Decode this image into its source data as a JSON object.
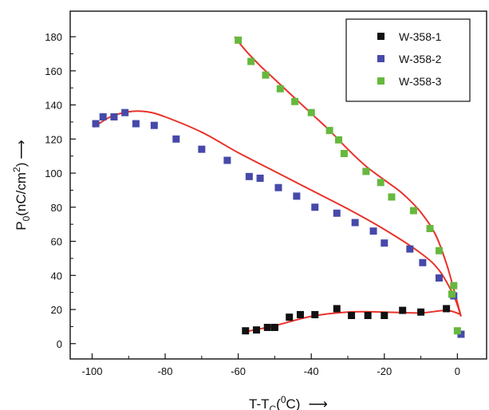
{
  "chart_data": {
    "type": "scatter",
    "xlabel_main": "T-T",
    "xlabel_sub": "C",
    "xlabel_paren_open": "(",
    "xlabel_sup": "0",
    "xlabel_tail": "C)",
    "xlabel_arrow": "⟶",
    "ylabel_main": "P",
    "ylabel_sub": "0",
    "ylabel_mid": "(nC/cm",
    "ylabel_sup": "2",
    "ylabel_tail": ")",
    "ylabel_arrow": "⟶",
    "xlim": [
      -106,
      8
    ],
    "ylim": [
      -9,
      195
    ],
    "x_ticks": [
      -100,
      -80,
      -60,
      -40,
      -20,
      0
    ],
    "y_ticks": [
      0,
      20,
      40,
      60,
      80,
      100,
      120,
      140,
      160,
      180
    ],
    "legend_position": "top-right",
    "fit_color": "#e8322a",
    "series": [
      {
        "name": "W-358-1",
        "color": "#111111",
        "points": [
          [
            -58,
            7.5
          ],
          [
            -55,
            8
          ],
          [
            -52,
            9.5
          ],
          [
            -50,
            9.5
          ],
          [
            -46,
            15.5
          ],
          [
            -43,
            17
          ],
          [
            -39,
            17
          ],
          [
            -33,
            20.5
          ],
          [
            -29,
            16.5
          ],
          [
            -24.5,
            16.5
          ],
          [
            -20,
            16.5
          ],
          [
            -15,
            19.5
          ],
          [
            -10,
            18.5
          ],
          [
            -3,
            20.5
          ]
        ],
        "fit": [
          [
            -58,
            7
          ],
          [
            -50,
            10.5
          ],
          [
            -40,
            16
          ],
          [
            -30,
            18.5
          ],
          [
            -20,
            18.5
          ],
          [
            -10,
            18
          ],
          [
            -3,
            19.5
          ],
          [
            1,
            17
          ]
        ]
      },
      {
        "name": "W-358-2",
        "color": "#4649a9",
        "points": [
          [
            -99,
            129
          ],
          [
            -97,
            133
          ],
          [
            -94,
            133
          ],
          [
            -91,
            135.5
          ],
          [
            -88,
            129
          ],
          [
            -83,
            128
          ],
          [
            -77,
            120
          ],
          [
            -70,
            114
          ],
          [
            -63,
            107.5
          ],
          [
            -57,
            98
          ],
          [
            -54,
            97
          ],
          [
            -49,
            91.5
          ],
          [
            -44,
            86.5
          ],
          [
            -39,
            80
          ],
          [
            -33,
            76.5
          ],
          [
            -28,
            71
          ],
          [
            -23,
            66
          ],
          [
            -20,
            59
          ],
          [
            -13,
            55.5
          ],
          [
            -9.5,
            47.5
          ],
          [
            -5,
            38.5
          ],
          [
            -1,
            28
          ],
          [
            1,
            5.5
          ]
        ],
        "fit": [
          [
            -99.5,
            127
          ],
          [
            -95,
            133
          ],
          [
            -90,
            136
          ],
          [
            -85,
            136
          ],
          [
            -80,
            133
          ],
          [
            -70,
            124
          ],
          [
            -60,
            112
          ],
          [
            -50,
            101
          ],
          [
            -40,
            90
          ],
          [
            -30,
            79
          ],
          [
            -20,
            67
          ],
          [
            -10,
            53
          ],
          [
            -5,
            43
          ],
          [
            -1,
            28
          ],
          [
            1,
            16
          ]
        ]
      },
      {
        "name": "W-358-3",
        "color": "#66b83e",
        "points": [
          [
            -60,
            178
          ],
          [
            -56.5,
            165.5
          ],
          [
            -52.5,
            157.5
          ],
          [
            -48.5,
            149.5
          ],
          [
            -44.5,
            142
          ],
          [
            -40,
            135.5
          ],
          [
            -35,
            125
          ],
          [
            -32.5,
            119.5
          ],
          [
            -31,
            111.5
          ],
          [
            -25,
            101
          ],
          [
            -21,
            94.5
          ],
          [
            -18,
            86
          ],
          [
            -12,
            78
          ],
          [
            -7.5,
            67.5
          ],
          [
            -5,
            54.5
          ],
          [
            -1,
            34
          ],
          [
            -1.5,
            29
          ],
          [
            0,
            7.5
          ]
        ],
        "fit": [
          [
            -61,
            180
          ],
          [
            -58,
            172
          ],
          [
            -54,
            163
          ],
          [
            -50,
            155
          ],
          [
            -45,
            145
          ],
          [
            -40,
            135
          ],
          [
            -35,
            125
          ],
          [
            -30,
            114
          ],
          [
            -25,
            104
          ],
          [
            -20,
            96
          ],
          [
            -15,
            88
          ],
          [
            -10,
            77
          ],
          [
            -6,
            64
          ],
          [
            -3,
            47
          ],
          [
            -1,
            32
          ],
          [
            1,
            16
          ]
        ]
      }
    ]
  }
}
